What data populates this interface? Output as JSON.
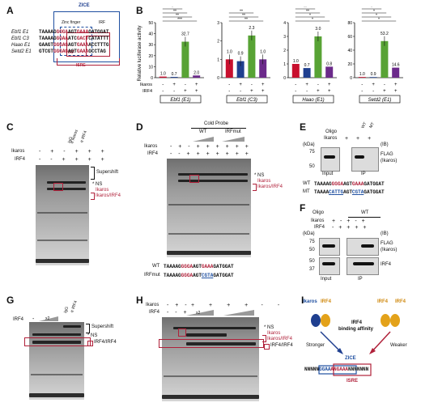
{
  "panels": {
    "A": "A",
    "B": "B",
    "C": "C",
    "D": "D",
    "E": "E",
    "F": "F",
    "G": "G",
    "H": "H",
    "I": "I"
  },
  "panelA": {
    "zice": "ZICE",
    "zinc_finger": "Zinc finger",
    "irf_top": "IRF",
    "irf_bottom": "IRF",
    "isre": "ISRE",
    "rows": [
      {
        "name": "Ebf1 E1",
        "p1": "TAAAAG",
        "p2": "GGGA",
        "p3": "AGT",
        "p4": "GAAA",
        "p5": "GATGGAT"
      },
      {
        "name": "Ebf1 C3",
        "p1": "TAAAAG",
        "p2": "GGAA",
        "p3": "ATC",
        "p4": "GACT",
        "p5": "CATATTT"
      },
      {
        "name": "Haao E1",
        "p1": "GAAGT",
        "p2": "GGGAG",
        "p3": "AGT",
        "p4": "GAAA",
        "p5": "ACCTTTG"
      },
      {
        "name": "Setd2 E1",
        "p1": "GTCGT",
        "p2": "GGGAG",
        "p3": "AGT",
        "p4": "GAAA",
        "p5": "GCCTAG"
      }
    ]
  },
  "panelB": {
    "ylabel": "Relative luciferase activity",
    "row_ikaros": "Ikaros",
    "row_irf4": "IRF4",
    "charts": [
      {
        "ymax": 50,
        "ticks": [
          "0",
          "10",
          "20",
          "30",
          "40",
          "50"
        ],
        "values": [
          1.0,
          0.7,
          32.7,
          2.0
        ],
        "labels": [
          "1.0",
          "0.7",
          "32.7",
          "2.0"
        ],
        "colors": [
          "#c8102e",
          "#1f3f8f",
          "#58a335",
          "#6b2a8a"
        ],
        "sig": [
          "***",
          "**",
          "**",
          "*"
        ],
        "box": "Ebf1 (E1)",
        "ikaros": [
          "-",
          "+",
          "-",
          "+"
        ],
        "irf4": [
          "-",
          "-",
          "+",
          "+"
        ]
      },
      {
        "ymax": 3,
        "ticks": [
          "0",
          "1",
          "2",
          "3"
        ],
        "values": [
          1.0,
          0.9,
          2.3,
          1.0
        ],
        "labels": [
          "1.0",
          "0.9",
          "2.3",
          "1.0"
        ],
        "colors": [
          "#c8102e",
          "#1f3f8f",
          "#58a335",
          "#6b2a8a"
        ],
        "sig": [
          "**",
          "**",
          "**"
        ],
        "box": "Ebf1 (C3)",
        "ikaros": [
          "-",
          "+",
          "-",
          "+"
        ],
        "irf4": [
          "-",
          "-",
          "+",
          "+"
        ]
      },
      {
        "ymax": 4,
        "ticks": [
          "0",
          "1",
          "2",
          "3",
          "4"
        ],
        "values": [
          1.0,
          0.7,
          3.0,
          0.8
        ],
        "labels": [
          "1.0",
          "0.7",
          "3.0",
          "0.8"
        ],
        "colors": [
          "#c8102e",
          "#1f3f8f",
          "#58a335",
          "#6b2a8a"
        ],
        "sig": [
          "*",
          "*",
          "**",
          "**"
        ],
        "box": "Haao (E1)",
        "ikaros": [
          "-",
          "+",
          "-",
          "+"
        ],
        "irf4": [
          "-",
          "-",
          "+",
          "+"
        ]
      },
      {
        "ymax": 80,
        "ticks": [
          "0",
          "20",
          "40",
          "60",
          "80"
        ],
        "values": [
          1.0,
          0.9,
          53.2,
          14.6
        ],
        "labels": [
          "1.0",
          "0.9",
          "53.2",
          "14.6"
        ],
        "colors": [
          "#c8102e",
          "#1f3f8f",
          "#58a335",
          "#6b2a8a"
        ],
        "sig": [
          "*",
          "*",
          "*",
          "*"
        ],
        "box": "Setd2 (E1)",
        "ikaros": [
          "-",
          "+",
          "-",
          "+"
        ],
        "irf4": [
          "-",
          "-",
          "+",
          "+"
        ]
      }
    ]
  },
  "panelC": {
    "ikaros": "Ikaros",
    "irf4": "IRF4",
    "igg": "IgG",
    "aik": "α Ikaros",
    "airf": "α IRF4",
    "supershift": "Supershift",
    "ns": "* NS",
    "ikl": "Ikaros",
    "ikirf": "Ikaros/IRF4"
  },
  "panelD": {
    "cold": "Cold Probe",
    "wt": "WT",
    "irfmut": "IRFmut",
    "ikaros": "Ikaros",
    "irf4": "IRF4",
    "ns": "* NS",
    "ikl": "Ikaros",
    "ikirf": "Ikaros/IRF4",
    "seq_wt_label": "WT",
    "seq_mut_label": "IRFmut",
    "seq_wt": "TAAAAGGGGAAGTGAAAGATGGAT",
    "seq_mut": "TAAAAGGGGAAGTCGTAGATGGAT"
  },
  "panelE": {
    "oligo": "Oligo",
    "ikaros": "Ikaros",
    "wt": "WT",
    "mt": "MT",
    "kda": "(kDa)",
    "ib": "(IB)",
    "m75": "75",
    "m50": "50",
    "flag": "FLAG",
    "flag2": "(Ikaros)",
    "input": "Input",
    "ip": "IP",
    "wt_label": "WT",
    "mt_label": "MT",
    "wt_seq": "TAAAAGGGGAAGTGAAAGATGGAT",
    "mt_seq": "TAAAACATTGAGTCGTAGATGGAT"
  },
  "panelF": {
    "oligo": "Oligo",
    "wt": "WT",
    "ikaros": "Ikaros",
    "irf4": "IRF4",
    "kda": "(kDa)",
    "ib": "(IB)",
    "m75": "75",
    "m50": "50",
    "m50b": "50",
    "m37": "37",
    "flag": "FLAG",
    "flag2": "(Ikaros)",
    "irf4b": "IRF4",
    "input": "Input",
    "ip": "IP"
  },
  "panelG": {
    "irf4": "IRF4",
    "x2": "x2",
    "igg": "IgG",
    "airf": "α IRF4",
    "supershift": "Supershift",
    "ns": "* NS",
    "irfirf": "IRF4/IRF4"
  },
  "panelH": {
    "ikaros": "Ikaros",
    "irf4": "IRF4",
    "x2": "x2",
    "ns": "* NS",
    "ikl": "Ikaros",
    "ikirf": "Ikaros/IRF4",
    "irfirf": "IRF4/IRF4"
  },
  "panelI": {
    "ikaros": "Ikaros",
    "irf4a": "IRF4",
    "irf4b": "IRF4",
    "irf4c": "IRF4",
    "binding": "IRF4",
    "binding2": "binding affinity",
    "stronger": "Stronger",
    "weaker": "Weaker",
    "zice": "ZICE",
    "isre": "ISRE",
    "seq1": "NNNNN",
    "seq2": "GGAA",
    "seq3": "A",
    "seq4": "NGAAA",
    "seq5": "NNNNNNN"
  }
}
